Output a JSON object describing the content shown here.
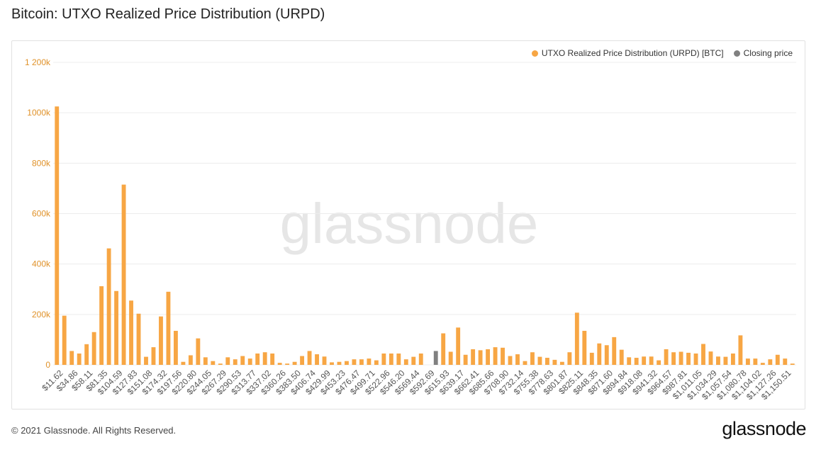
{
  "page_title": "Bitcoin: UTXO Realized Price Distribution (URPD)",
  "footer": {
    "copyright": "© 2021 Glassnode. All Rights Reserved.",
    "logo": "glassnode"
  },
  "watermark": "glassnode",
  "colors": {
    "bar": "#f7a644",
    "closing": "#808080",
    "grid": "#ececec",
    "axis_text": "#e0922a"
  },
  "chart_data": {
    "type": "bar",
    "title": "Bitcoin: UTXO Realized Price Distribution (URPD)",
    "xlabel": "",
    "ylabel": "",
    "ylim": [
      0,
      1200000
    ],
    "yticks": [
      0,
      200000,
      400000,
      600000,
      800000,
      1000000,
      1200000
    ],
    "ytick_labels": [
      "0",
      "200k",
      "400k",
      "600k",
      "800k",
      "1000k",
      "1 200k"
    ],
    "grid": true,
    "legend_position": "top-right",
    "legend": [
      {
        "label": "UTXO Realized Price Distribution (URPD) [BTC]",
        "color": "#f7a644"
      },
      {
        "label": "Closing price",
        "color": "#808080"
      }
    ],
    "closing_index": 51,
    "tick_labels": [
      "$11.62",
      "$34.86",
      "$58.11",
      "$81.35",
      "$104.59",
      "$127.83",
      "$151.08",
      "$174.32",
      "$197.56",
      "$220.80",
      "$244.05",
      "$267.29",
      "$290.53",
      "$313.77",
      "$337.02",
      "$360.26",
      "$383.50",
      "$406.74",
      "$429.99",
      "$453.23",
      "$476.47",
      "$499.71",
      "$522.96",
      "$546.20",
      "$569.44",
      "$592.69",
      "$615.93",
      "$639.17",
      "$662.41",
      "$685.66",
      "$708.90",
      "$732.14",
      "$755.38",
      "$778.63",
      "$801.87",
      "$825.11",
      "$848.35",
      "$871.60",
      "$894.84",
      "$918.08",
      "$941.32",
      "$964.57",
      "$987.81",
      "$1,011.05",
      "$1,034.29",
      "$1,057.54",
      "$1,080.78",
      "$1,104.02",
      "$1,127.26",
      "$1,150.51"
    ],
    "values": [
      1025000,
      195000,
      55000,
      45000,
      82000,
      130000,
      312000,
      462000,
      293000,
      715000,
      255000,
      203000,
      32000,
      70000,
      192000,
      290000,
      135000,
      12000,
      38000,
      105000,
      30000,
      15000,
      5000,
      30000,
      22000,
      35000,
      25000,
      45000,
      50000,
      45000,
      8000,
      5000,
      12000,
      35000,
      55000,
      42000,
      33000,
      10000,
      12000,
      15000,
      22000,
      22000,
      25000,
      18000,
      45000,
      45000,
      45000,
      22000,
      32000,
      45000,
      0,
      55000,
      125000,
      52000,
      148000,
      40000,
      62000,
      58000,
      62000,
      70000,
      68000,
      35000,
      42000,
      15000,
      50000,
      32000,
      28000,
      20000,
      12000,
      50000,
      207000,
      135000,
      48000,
      85000,
      78000,
      110000,
      60000,
      30000,
      28000,
      33000,
      33000,
      18000,
      62000,
      50000,
      52000,
      48000,
      45000,
      83000,
      53000,
      33000,
      32000,
      45000,
      117000,
      25000,
      25000,
      8000,
      22000,
      40000,
      25000,
      5000
    ]
  }
}
